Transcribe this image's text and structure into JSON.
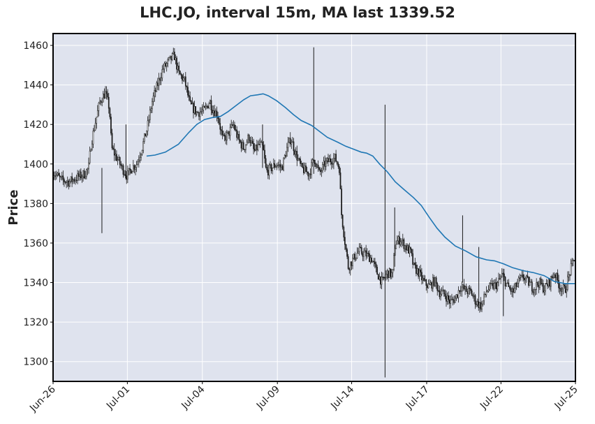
{
  "chart_data": {
    "type": "candlestick",
    "title": "LHC.JO, interval 15m, MA last 1339.52",
    "ylabel": "Price",
    "xlabel": "",
    "ylim": [
      1290,
      1466
    ],
    "grid": true,
    "yticks": [
      1300,
      1320,
      1340,
      1360,
      1380,
      1400,
      1420,
      1440,
      1460
    ],
    "xticks": [
      {
        "label": "Jun-26",
        "t": 0
      },
      {
        "label": "Jul-01",
        "t": 0.1422
      },
      {
        "label": "Jul-04",
        "t": 0.2858
      },
      {
        "label": "Jul-09",
        "t": 0.4294
      },
      {
        "label": "Jul-14",
        "t": 0.5716
      },
      {
        "label": "Jul-17",
        "t": 0.7152
      },
      {
        "label": "Jul-22",
        "t": 0.8574
      },
      {
        "label": "Jul-25",
        "t": 1.0
      }
    ],
    "price_path": [
      [
        0.0,
        1396
      ],
      [
        0.015,
        1392
      ],
      [
        0.03,
        1391
      ],
      [
        0.045,
        1393
      ],
      [
        0.06,
        1395
      ],
      [
        0.068,
        1398
      ],
      [
        0.072,
        1409
      ],
      [
        0.08,
        1420
      ],
      [
        0.09,
        1432
      ],
      [
        0.1,
        1436
      ],
      [
        0.108,
        1428
      ],
      [
        0.112,
        1408
      ],
      [
        0.12,
        1404
      ],
      [
        0.132,
        1398
      ],
      [
        0.142,
        1394
      ],
      [
        0.15,
        1398
      ],
      [
        0.16,
        1400
      ],
      [
        0.17,
        1408
      ],
      [
        0.18,
        1418
      ],
      [
        0.19,
        1432
      ],
      [
        0.2,
        1440
      ],
      [
        0.21,
        1448
      ],
      [
        0.222,
        1452
      ],
      [
        0.232,
        1455
      ],
      [
        0.24,
        1446
      ],
      [
        0.252,
        1442
      ],
      [
        0.262,
        1430
      ],
      [
        0.275,
        1426
      ],
      [
        0.29,
        1427
      ],
      [
        0.3,
        1432
      ],
      [
        0.305,
        1428
      ],
      [
        0.315,
        1425
      ],
      [
        0.325,
        1412
      ],
      [
        0.335,
        1415
      ],
      [
        0.345,
        1420
      ],
      [
        0.355,
        1412
      ],
      [
        0.365,
        1408
      ],
      [
        0.375,
        1414
      ],
      [
        0.385,
        1406
      ],
      [
        0.395,
        1410
      ],
      [
        0.402,
        1408
      ],
      [
        0.408,
        1396
      ],
      [
        0.418,
        1398
      ],
      [
        0.428,
        1400
      ],
      [
        0.438,
        1398
      ],
      [
        0.448,
        1408
      ],
      [
        0.455,
        1413
      ],
      [
        0.465,
        1405
      ],
      [
        0.475,
        1398
      ],
      [
        0.49,
        1395
      ],
      [
        0.5,
        1403
      ],
      [
        0.51,
        1395
      ],
      [
        0.52,
        1400
      ],
      [
        0.53,
        1402
      ],
      [
        0.54,
        1403
      ],
      [
        0.548,
        1398
      ],
      [
        0.552,
        1375
      ],
      [
        0.558,
        1362
      ],
      [
        0.565,
        1348
      ],
      [
        0.575,
        1352
      ],
      [
        0.585,
        1356
      ],
      [
        0.6,
        1354
      ],
      [
        0.61,
        1352
      ],
      [
        0.62,
        1345
      ],
      [
        0.63,
        1340
      ],
      [
        0.64,
        1345
      ],
      [
        0.65,
        1344
      ],
      [
        0.655,
        1360
      ],
      [
        0.665,
        1362
      ],
      [
        0.675,
        1358
      ],
      [
        0.685,
        1355
      ],
      [
        0.69,
        1348
      ],
      [
        0.7,
        1345
      ],
      [
        0.71,
        1340
      ],
      [
        0.72,
        1338
      ],
      [
        0.73,
        1341
      ],
      [
        0.74,
        1335
      ],
      [
        0.75,
        1334
      ],
      [
        0.76,
        1330
      ],
      [
        0.77,
        1332
      ],
      [
        0.78,
        1338
      ],
      [
        0.79,
        1336
      ],
      [
        0.8,
        1335
      ],
      [
        0.81,
        1330
      ],
      [
        0.82,
        1328
      ],
      [
        0.83,
        1336
      ],
      [
        0.84,
        1338
      ],
      [
        0.85,
        1339
      ],
      [
        0.86,
        1344
      ],
      [
        0.87,
        1338
      ],
      [
        0.88,
        1335
      ],
      [
        0.89,
        1340
      ],
      [
        0.9,
        1343
      ],
      [
        0.91,
        1340
      ],
      [
        0.92,
        1337
      ],
      [
        0.93,
        1340
      ],
      [
        0.94,
        1337
      ],
      [
        0.95,
        1340
      ],
      [
        0.96,
        1345
      ],
      [
        0.97,
        1338
      ],
      [
        0.98,
        1336
      ],
      [
        0.99,
        1346
      ],
      [
        1.0,
        1354
      ]
    ],
    "spikes": [
      {
        "t": 0.0935,
        "high": 1398,
        "low": 1365
      },
      {
        "t": 0.1395,
        "high": 1420,
        "low": 1392
      },
      {
        "t": 0.401,
        "high": 1420,
        "low": 1398
      },
      {
        "t": 0.499,
        "high": 1459,
        "low": 1395
      },
      {
        "t": 0.6355,
        "high": 1430,
        "low": 1292
      },
      {
        "t": 0.654,
        "high": 1378,
        "low": 1348
      },
      {
        "t": 0.784,
        "high": 1374,
        "low": 1340
      },
      {
        "t": 0.815,
        "high": 1358,
        "low": 1330
      },
      {
        "t": 0.862,
        "high": 1345,
        "low": 1323
      }
    ],
    "moving_average": [
      [
        0.179,
        1404
      ],
      [
        0.195,
        1404.5
      ],
      [
        0.215,
        1406
      ],
      [
        0.24,
        1410
      ],
      [
        0.26,
        1416
      ],
      [
        0.275,
        1420
      ],
      [
        0.29,
        1422.5
      ],
      [
        0.305,
        1423.5
      ],
      [
        0.32,
        1424
      ],
      [
        0.335,
        1426.5
      ],
      [
        0.35,
        1429.5
      ],
      [
        0.365,
        1432.5
      ],
      [
        0.378,
        1434.5
      ],
      [
        0.392,
        1435
      ],
      [
        0.402,
        1435.5
      ],
      [
        0.412,
        1434.5
      ],
      [
        0.428,
        1432
      ],
      [
        0.445,
        1428.5
      ],
      [
        0.46,
        1425
      ],
      [
        0.475,
        1422
      ],
      [
        0.495,
        1419.5
      ],
      [
        0.51,
        1416.5
      ],
      [
        0.525,
        1413.5
      ],
      [
        0.545,
        1411
      ],
      [
        0.56,
        1409
      ],
      [
        0.575,
        1407.5
      ],
      [
        0.59,
        1406
      ],
      [
        0.6,
        1405.5
      ],
      [
        0.612,
        1404
      ],
      [
        0.625,
        1400
      ],
      [
        0.64,
        1396
      ],
      [
        0.655,
        1391
      ],
      [
        0.672,
        1387
      ],
      [
        0.69,
        1383
      ],
      [
        0.705,
        1379
      ],
      [
        0.72,
        1373
      ],
      [
        0.735,
        1367.5
      ],
      [
        0.75,
        1363
      ],
      [
        0.77,
        1358.5
      ],
      [
        0.79,
        1356
      ],
      [
        0.81,
        1353
      ],
      [
        0.83,
        1351.5
      ],
      [
        0.845,
        1351
      ],
      [
        0.862,
        1349.5
      ],
      [
        0.88,
        1347.5
      ],
      [
        0.9,
        1346
      ],
      [
        0.92,
        1345
      ],
      [
        0.94,
        1343.5
      ],
      [
        0.96,
        1340.5
      ],
      [
        0.98,
        1339.5
      ],
      [
        1.0,
        1339.5
      ]
    ],
    "colors": {
      "plot_background": "#dfe3ee",
      "grid": "#ffffff",
      "candles": "#1a1a1a",
      "moving_average": "#1f77b4",
      "axes": "#000000",
      "text": "#222222"
    }
  }
}
